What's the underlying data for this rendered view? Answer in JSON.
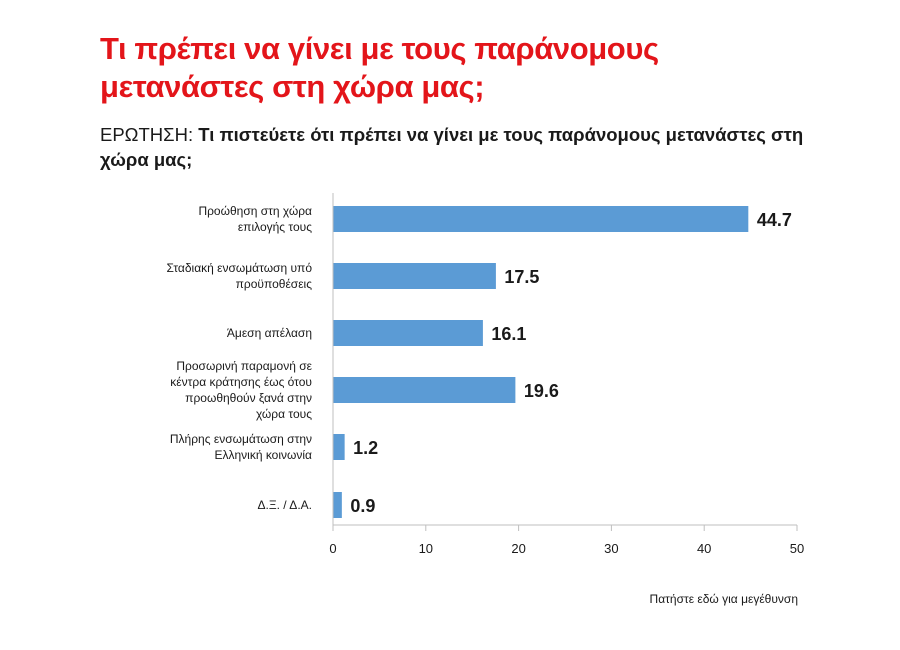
{
  "header": {
    "title": "Τι πρέπει να γίνει με τους παράνομους μετανάστες στη χώρα μας;",
    "question_label": "ΕΡΩΤΗΣΗ:",
    "question_text": "Τι πιστεύετε ότι πρέπει να γίνει με τους παράνομους μετανάστες στη χώρα μας;"
  },
  "footer": {
    "enlarge_link": "Πατήστε εδώ για μεγέθυνση"
  },
  "colors": {
    "title": "#e3151a",
    "bar": "#5b9bd5",
    "axis": "#bfbfbf"
  },
  "chart_data": {
    "type": "bar",
    "orientation": "horizontal",
    "categories": [
      [
        "Προώθηση στη χώρα",
        "επιλογής τους"
      ],
      [
        "Σταδιακή ενσωμάτωση υπό",
        "προϋποθέσεις"
      ],
      [
        "Άμεση απέλαση"
      ],
      [
        "Προσωρινή παραμονή σε",
        "κέντρα κράτησης έως ότου",
        "προωθηθούν ξανά στην",
        "χώρα τους"
      ],
      [
        "Πλήρης ενσωμάτωση στην",
        "Ελληνική κοινωνία"
      ],
      [
        "Δ.Ξ. / Δ.Α."
      ]
    ],
    "values": [
      44.7,
      17.5,
      16.1,
      19.6,
      1.2,
      0.9
    ],
    "data_labels": [
      "44.7",
      "17.5",
      "16.1",
      "19.6",
      "1.2",
      "0.9"
    ],
    "xlim": [
      0,
      50
    ],
    "xticks": [
      0,
      10,
      20,
      30,
      40,
      50
    ],
    "xlabel": "",
    "ylabel": "",
    "grid": false
  }
}
